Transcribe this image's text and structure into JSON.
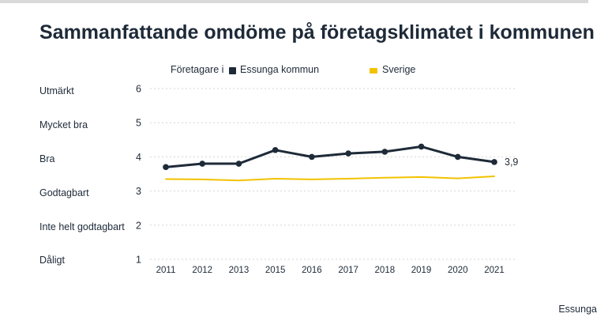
{
  "title": "Sammanfattande omdöme på företagsklimatet i kommunen",
  "legend": {
    "prefix": "Företagare i",
    "series_dark": "Essunga kommun",
    "series_yellow": "Sverige"
  },
  "category_labels": [
    {
      "label": "Utmärkt",
      "level": 6
    },
    {
      "label": "Mycket bra",
      "level": 5
    },
    {
      "label": "Bra",
      "level": 4
    },
    {
      "label": "Godtagbart",
      "level": 3
    },
    {
      "label": "Inte helt godtagbart",
      "level": 2
    },
    {
      "label": "Dåligt",
      "level": 1
    }
  ],
  "footer": "Essunga",
  "colors": {
    "dark": "#1e2a38",
    "yellow": "#f2c200",
    "grid": "#d6d6d6",
    "text": "#1e2a38"
  },
  "chart_data": {
    "type": "line",
    "categories": [
      "2011",
      "2012",
      "2013",
      "2015",
      "2016",
      "2017",
      "2018",
      "2019",
      "2020",
      "2021"
    ],
    "series": [
      {
        "name": "Essunga kommun",
        "values": [
          3.7,
          3.8,
          3.8,
          4.2,
          4.0,
          4.1,
          4.15,
          4.3,
          4.0,
          3.85
        ],
        "markers": true
      },
      {
        "name": "Sverige",
        "values": [
          3.35,
          3.34,
          3.31,
          3.36,
          3.34,
          3.36,
          3.39,
          3.41,
          3.37,
          3.43
        ],
        "markers": false
      }
    ],
    "end_label": "3,9",
    "y_ticks": [
      "1",
      "2",
      "3",
      "4",
      "5",
      "6"
    ],
    "ylim": [
      1,
      6
    ],
    "grid": true,
    "title": "Sammanfattande omdöme på företagsklimatet i kommunen",
    "xlabel": "",
    "ylabel": ""
  }
}
